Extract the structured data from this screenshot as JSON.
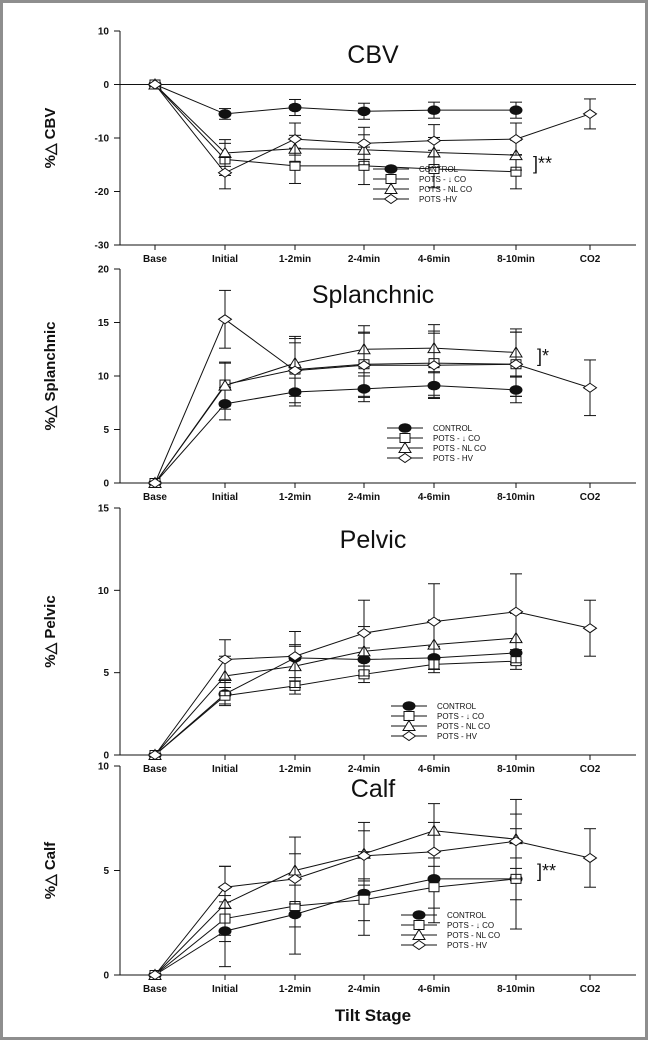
{
  "chart_data": [
    {
      "type": "line",
      "title": "CBV",
      "ylabel": "%△ CBV",
      "xlabel": "",
      "categories": [
        "Base",
        "Initial",
        "1-2min",
        "2-4min",
        "4-6min",
        "8-10min",
        "CO2"
      ],
      "ylim": [
        -30,
        10
      ],
      "yticks": [
        -30,
        -20,
        -10,
        0,
        10
      ],
      "zero_line": true,
      "legend": "bottom-right",
      "annotation": "]**",
      "series": [
        {
          "name": "CONTROL",
          "marker": "filled-circle",
          "values": [
            0,
            -5.5,
            -4.3,
            -5.0,
            -4.8,
            -4.8,
            null
          ],
          "errors": [
            0,
            1.0,
            1.5,
            1.5,
            1.5,
            1.5,
            null
          ]
        },
        {
          "name": "POTS - ↓ CO",
          "marker": "square",
          "values": [
            0,
            -14.0,
            -15.2,
            -15.2,
            -15.8,
            -16.3,
            null
          ],
          "errors": [
            0,
            3.0,
            3.3,
            3.5,
            3.5,
            3.2,
            null
          ]
        },
        {
          "name": "POTS - NL CO",
          "marker": "triangle",
          "values": [
            0,
            -12.8,
            -12.0,
            -12.2,
            -12.7,
            -13.2,
            null
          ],
          "errors": [
            0,
            2.5,
            2.5,
            2.8,
            2.8,
            2.8,
            null
          ]
        },
        {
          "name": "POTS -HV",
          "marker": "diamond",
          "values": [
            0,
            -16.5,
            -10.2,
            -11.0,
            -10.5,
            -10.2,
            -5.5
          ],
          "errors": [
            0,
            3.0,
            3.0,
            3.0,
            3.0,
            3.0,
            2.8
          ]
        }
      ]
    },
    {
      "type": "line",
      "title": "Splanchnic",
      "ylabel": "%△ Splanchnic",
      "xlabel": "",
      "categories": [
        "Base",
        "Initial",
        "1-2min",
        "2-4min",
        "4-6min",
        "8-10min",
        "CO2"
      ],
      "ylim": [
        0,
        20
      ],
      "yticks": [
        0,
        5,
        10,
        15,
        20
      ],
      "legend": "bottom-right",
      "annotation": "]*",
      "series": [
        {
          "name": "CONTROL",
          "marker": "filled-circle",
          "values": [
            0,
            7.4,
            8.5,
            8.8,
            9.1,
            8.7,
            null
          ],
          "errors": [
            0,
            1.5,
            1.3,
            1.2,
            1.2,
            1.2,
            null
          ]
        },
        {
          "name": "POTS - ↓ CO",
          "marker": "square",
          "values": [
            0,
            9.2,
            10.6,
            11.1,
            11.2,
            11.1,
            null
          ],
          "errors": [
            0,
            2.0,
            2.5,
            3.0,
            3.0,
            3.0,
            null
          ]
        },
        {
          "name": "POTS - NL CO",
          "marker": "triangle",
          "values": [
            0,
            9.1,
            11.2,
            12.5,
            12.6,
            12.2,
            null
          ],
          "errors": [
            0,
            2.2,
            2.5,
            2.2,
            2.2,
            2.2,
            null
          ]
        },
        {
          "name": "POTS - HV",
          "marker": "diamond",
          "values": [
            0,
            15.3,
            10.5,
            11.0,
            11.0,
            11.1,
            8.9
          ],
          "errors": [
            0,
            2.7,
            3.0,
            3.0,
            3.0,
            3.0,
            2.6
          ]
        }
      ]
    },
    {
      "type": "line",
      "title": "Pelvic",
      "ylabel": "%△ Pelvic",
      "xlabel": "",
      "categories": [
        "Base",
        "Initial",
        "1-2min",
        "2-4min",
        "4-6min",
        "8-10min",
        "CO2"
      ],
      "ylim": [
        0,
        15
      ],
      "yticks": [
        0,
        5,
        10,
        15
      ],
      "legend": "bottom-right",
      "annotation": "",
      "series": [
        {
          "name": "CONTROL",
          "marker": "filled-circle",
          "values": [
            0,
            3.7,
            5.9,
            5.8,
            5.9,
            6.2,
            null
          ],
          "errors": [
            0,
            0.7,
            0.7,
            0.7,
            0.7,
            0.7,
            null
          ]
        },
        {
          "name": "POTS - ↓ CO",
          "marker": "square",
          "values": [
            0,
            3.6,
            4.2,
            4.9,
            5.5,
            5.7,
            null
          ],
          "errors": [
            0,
            0.5,
            0.5,
            0.5,
            0.5,
            0.5,
            null
          ]
        },
        {
          "name": "POTS - NL CO",
          "marker": "triangle",
          "values": [
            0,
            4.8,
            5.4,
            6.3,
            6.7,
            7.1,
            null
          ],
          "errors": [
            0,
            1.2,
            1.3,
            1.5,
            1.5,
            1.5,
            null
          ]
        },
        {
          "name": "POTS - HV",
          "marker": "diamond",
          "values": [
            0,
            5.8,
            6.0,
            7.4,
            8.1,
            8.7,
            7.7
          ],
          "errors": [
            0,
            1.2,
            1.5,
            2.0,
            2.3,
            2.3,
            1.7
          ]
        }
      ]
    },
    {
      "type": "line",
      "title": "Calf",
      "ylabel": "%△ Calf",
      "xlabel": "Tilt Stage",
      "categories": [
        "Base",
        "Initial",
        "1-2min",
        "2-4min",
        "4-6min",
        "8-10min",
        "CO2"
      ],
      "ylim": [
        0,
        10
      ],
      "yticks": [
        0,
        5,
        10
      ],
      "legend": "bottom-right",
      "annotation": "]**",
      "series": [
        {
          "name": "CONTROL",
          "marker": "filled-circle",
          "values": [
            0,
            2.1,
            2.9,
            3.9,
            4.6,
            4.6,
            null
          ],
          "errors": [
            0,
            1.7,
            1.9,
            2.0,
            2.1,
            2.4,
            null
          ]
        },
        {
          "name": "POTS - ↓ CO",
          "marker": "square",
          "values": [
            0,
            2.7,
            3.3,
            3.6,
            4.2,
            4.6,
            null
          ],
          "errors": [
            0,
            0.8,
            1.0,
            1.0,
            1.0,
            1.0,
            null
          ]
        },
        {
          "name": "POTS - NL CO",
          "marker": "triangle",
          "values": [
            0,
            3.4,
            5.0,
            5.8,
            6.9,
            6.5,
            null
          ],
          "errors": [
            0,
            1.8,
            1.6,
            1.5,
            1.3,
            1.9,
            null
          ]
        },
        {
          "name": "POTS - HV",
          "marker": "diamond",
          "values": [
            0,
            4.2,
            4.6,
            5.7,
            5.9,
            6.4,
            5.6
          ],
          "errors": [
            0,
            1.0,
            1.2,
            1.2,
            1.4,
            1.3,
            1.4
          ]
        }
      ]
    }
  ]
}
